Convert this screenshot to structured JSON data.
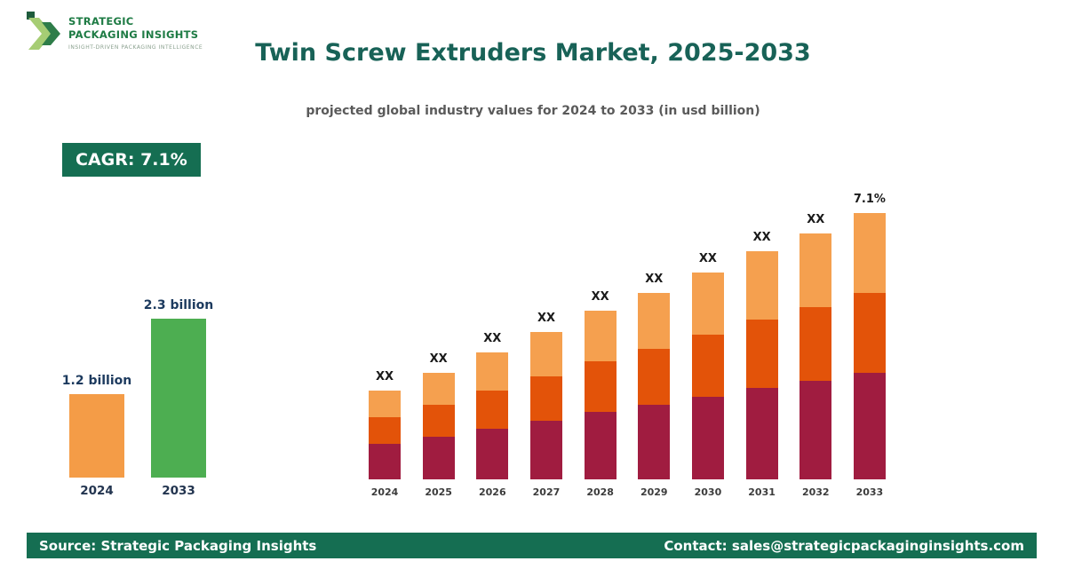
{
  "header": {
    "logo": {
      "line1": "STRATEGIC",
      "line2": "PACKAGING INSIGHTS",
      "tagline": "INSIGHT-DRIVEN PACKAGING INTELLIGENCE"
    },
    "title": "Twin Screw Extruders Market, 2025-2033",
    "subtitle": "projected global industry values for 2024 to 2033 (in usd billion)"
  },
  "cagr_badge": "CAGR: 7.1%",
  "colors": {
    "brand_green": "#156E52",
    "title_teal": "#186257",
    "navy_label": "#1C3A5E",
    "mini_orange": "#F49C47",
    "mini_green": "#4DAE51",
    "segment_bottom": "#A01C40",
    "segment_middle": "#E35309",
    "segment_top": "#F5A04F"
  },
  "chart_data": [
    {
      "type": "bar",
      "name": "endpoint-comparison",
      "title": "",
      "categories": [
        "2024",
        "2033"
      ],
      "values": [
        1.2,
        2.3
      ],
      "value_labels": [
        "1.2 billion",
        "2.3 billion"
      ],
      "bar_colors": [
        "#F49C47",
        "#4DAE51"
      ],
      "ylabel": "usd billion",
      "ylim": [
        0,
        2.5
      ],
      "grid": false,
      "legend": "none"
    },
    {
      "type": "bar",
      "subtype": "stacked",
      "name": "yearly-projection",
      "title": "",
      "units": "relative index (2024 = 1.0); actual values masked as XX in source image",
      "categories": [
        "2024",
        "2025",
        "2026",
        "2027",
        "2028",
        "2029",
        "2030",
        "2031",
        "2032",
        "2033"
      ],
      "series": [
        {
          "name": "bottom",
          "color": "#A01C40",
          "values": [
            0.4,
            0.48,
            0.57,
            0.66,
            0.76,
            0.84,
            0.93,
            1.03,
            1.11,
            1.2
          ]
        },
        {
          "name": "middle",
          "color": "#E35309",
          "values": [
            0.3,
            0.36,
            0.43,
            0.5,
            0.57,
            0.63,
            0.7,
            0.77,
            0.83,
            0.9
          ]
        },
        {
          "name": "top",
          "color": "#F5A04F",
          "values": [
            0.3,
            0.36,
            0.43,
            0.5,
            0.57,
            0.63,
            0.7,
            0.77,
            0.83,
            0.9
          ]
        }
      ],
      "bar_labels": [
        "XX",
        "XX",
        "XX",
        "XX",
        "XX",
        "XX",
        "XX",
        "XX",
        "XX",
        "7.1%"
      ],
      "ylim": [
        0,
        3.2
      ],
      "grid": false,
      "legend": "none"
    }
  ],
  "footer": {
    "source": "Source: Strategic Packaging Insights",
    "contact": "Contact: sales@strategicpackaginginsights.com"
  }
}
